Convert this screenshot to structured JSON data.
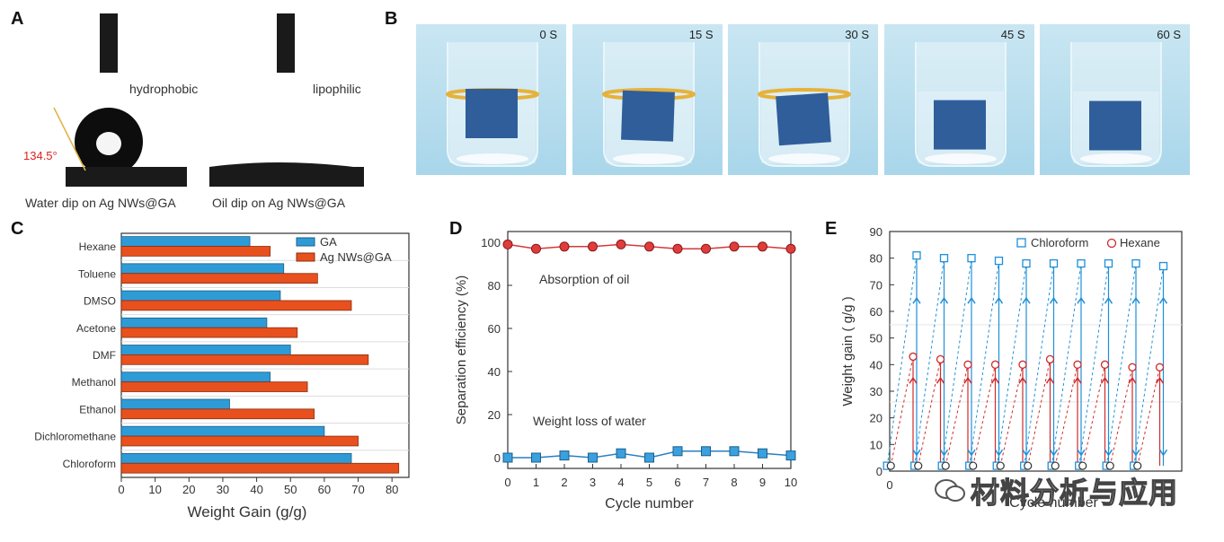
{
  "panels": {
    "a": {
      "letter": "A",
      "label_hydrophobic": "hydrophobic",
      "label_lipophilic": "lipophilic",
      "angle": "134.5°",
      "caption_water": "Water dip on Ag NWs@GA",
      "caption_oil": "Oil dip on Ag NWs@GA"
    },
    "b": {
      "letter": "B",
      "time_labels": [
        "0 S",
        "15 S",
        "30 S",
        "45 S",
        "60 S"
      ]
    },
    "c": {
      "letter": "C"
    },
    "d": {
      "letter": "D"
    },
    "e": {
      "letter": "E"
    }
  },
  "watermark": "材料分析与应用",
  "colors": {
    "blue": "#2f9bd6",
    "orange": "#e8501e",
    "red": "#d12a2a",
    "line_blue": "#1e90d8"
  },
  "chart_data": [
    {
      "id": "C",
      "type": "bar",
      "orientation": "horizontal",
      "categories": [
        "Hexane",
        "Toluene",
        "DMSO",
        "Acetone",
        "DMF",
        "Methanol",
        "Ethanol",
        "Dichloromethane",
        "Chloroform"
      ],
      "series": [
        {
          "name": "GA",
          "values": [
            38,
            48,
            47,
            43,
            50,
            44,
            32,
            60,
            68
          ]
        },
        {
          "name": "Ag NWs@GA",
          "values": [
            44,
            58,
            68,
            52,
            73,
            55,
            57,
            70,
            82
          ]
        }
      ],
      "xlabel": "Weight Gain (g/g)",
      "xlim": [
        0,
        85
      ],
      "xticks": [
        "0",
        "10",
        "20",
        "30",
        "40",
        "50",
        "60",
        "70",
        "80"
      ],
      "legend": "top-right"
    },
    {
      "id": "D",
      "type": "line",
      "x": [
        0,
        1,
        2,
        3,
        4,
        5,
        6,
        7,
        8,
        9,
        10
      ],
      "series": [
        {
          "name": "Absorption of oil",
          "values": [
            99,
            97,
            98,
            98,
            99,
            98,
            97,
            97,
            98,
            98,
            97
          ]
        },
        {
          "name": "Weight loss of water",
          "values": [
            0,
            0,
            1,
            0,
            2,
            0,
            3,
            3,
            3,
            2,
            1
          ]
        }
      ],
      "xlabel": "Cycle number",
      "ylabel": "Separation efficiency (%)",
      "xticks": [
        "0",
        "1",
        "2",
        "3",
        "4",
        "5",
        "6",
        "7",
        "8",
        "9",
        "10"
      ],
      "yticks": [
        "0",
        "20",
        "40",
        "60",
        "80",
        "100"
      ],
      "xlim": [
        0,
        10
      ],
      "ylim": [
        -5,
        105
      ]
    },
    {
      "id": "E",
      "type": "scatter",
      "cycles": 10,
      "series": [
        {
          "name": "Chloroform",
          "peak_values": [
            81,
            80,
            80,
            79,
            78,
            78,
            78,
            78,
            78,
            77
          ],
          "low_value": 2
        },
        {
          "name": "Hexane",
          "peak_values": [
            43,
            42,
            40,
            40,
            40,
            42,
            40,
            40,
            39,
            39
          ],
          "low_value": 2
        }
      ],
      "xlabel": "Cycle number",
      "ylabel": "Weight gain ( g/g )",
      "xticks": [
        "0"
      ],
      "yticks": [
        "0",
        "10",
        "20",
        "30",
        "40",
        "50",
        "60",
        "70",
        "80",
        "90"
      ],
      "ylim": [
        0,
        90
      ],
      "legend": "top-right"
    }
  ]
}
